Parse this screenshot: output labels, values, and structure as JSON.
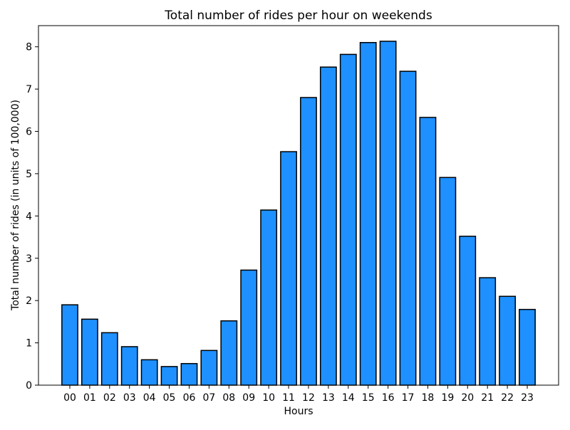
{
  "chart_data": {
    "type": "bar",
    "title": "Total number of rides per hour on weekends",
    "xlabel": "Hours",
    "ylabel": "Total number of rides (in units of 100,000)",
    "categories": [
      "00",
      "01",
      "02",
      "03",
      "04",
      "05",
      "06",
      "07",
      "08",
      "09",
      "10",
      "11",
      "12",
      "13",
      "14",
      "15",
      "16",
      "17",
      "18",
      "19",
      "20",
      "21",
      "22",
      "23"
    ],
    "values": [
      1.9,
      1.56,
      1.24,
      0.91,
      0.6,
      0.44,
      0.51,
      0.82,
      1.52,
      2.72,
      4.14,
      5.52,
      6.8,
      7.52,
      7.82,
      8.1,
      8.13,
      7.42,
      6.33,
      4.91,
      3.52,
      2.54,
      2.1,
      1.79
    ],
    "ylim": [
      0,
      8.5
    ],
    "yticks": [
      "0",
      "1",
      "2",
      "3",
      "4",
      "5",
      "6",
      "7",
      "8"
    ],
    "bar_color": "#1e90ff",
    "edge_color": "#000000",
    "grid": false
  }
}
